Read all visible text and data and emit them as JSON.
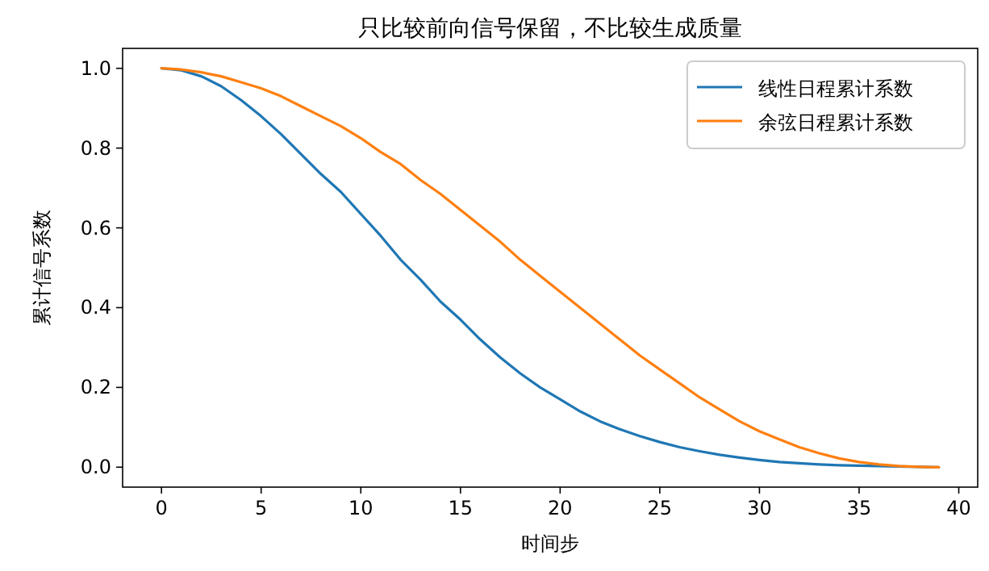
{
  "chart_data": {
    "type": "line",
    "title": "只比较前向信号保留，不比较生成质量",
    "xlabel": "时间步",
    "ylabel": "累计信号系数",
    "x": [
      0,
      1,
      2,
      3,
      4,
      5,
      6,
      7,
      8,
      9,
      10,
      11,
      12,
      13,
      14,
      15,
      16,
      17,
      18,
      19,
      20,
      21,
      22,
      23,
      24,
      25,
      26,
      27,
      28,
      29,
      30,
      31,
      32,
      33,
      34,
      35,
      36,
      37,
      38,
      39
    ],
    "series": [
      {
        "name": "线性日程累计系数",
        "color": "#1f77b4",
        "values": [
          1.0,
          0.995,
          0.98,
          0.955,
          0.92,
          0.88,
          0.835,
          0.785,
          0.735,
          0.69,
          0.635,
          0.58,
          0.52,
          0.47,
          0.415,
          0.37,
          0.32,
          0.275,
          0.235,
          0.2,
          0.17,
          0.14,
          0.115,
          0.095,
          0.078,
          0.063,
          0.05,
          0.04,
          0.031,
          0.024,
          0.018,
          0.013,
          0.01,
          0.007,
          0.005,
          0.004,
          0.003,
          0.002,
          0.001,
          0.0
        ]
      },
      {
        "name": "余弦日程累计系数",
        "color": "#ff7f0e",
        "values": [
          1.0,
          0.997,
          0.99,
          0.98,
          0.965,
          0.95,
          0.93,
          0.905,
          0.88,
          0.855,
          0.825,
          0.79,
          0.76,
          0.72,
          0.685,
          0.645,
          0.605,
          0.565,
          0.52,
          0.48,
          0.44,
          0.4,
          0.36,
          0.32,
          0.28,
          0.245,
          0.21,
          0.175,
          0.145,
          0.115,
          0.09,
          0.07,
          0.05,
          0.035,
          0.022,
          0.013,
          0.007,
          0.003,
          0.001,
          0.0
        ]
      }
    ],
    "xlim": [
      -1.95,
      40.95
    ],
    "xticks": [
      0,
      5,
      10,
      15,
      20,
      25,
      30,
      35,
      40
    ],
    "ylim": [
      -0.05,
      1.05
    ],
    "yticks": [
      {
        "value": 0,
        "label": "0.0"
      },
      {
        "value": 0.2,
        "label": "0.2"
      },
      {
        "value": 0.4,
        "label": "0.4"
      },
      {
        "value": 0.6,
        "label": "0.6"
      },
      {
        "value": 0.8,
        "label": "0.8"
      },
      {
        "value": 1.0,
        "label": "1.0"
      }
    ],
    "grid": false,
    "legend": "top right",
    "marker": "none",
    "line_style": "solid"
  }
}
